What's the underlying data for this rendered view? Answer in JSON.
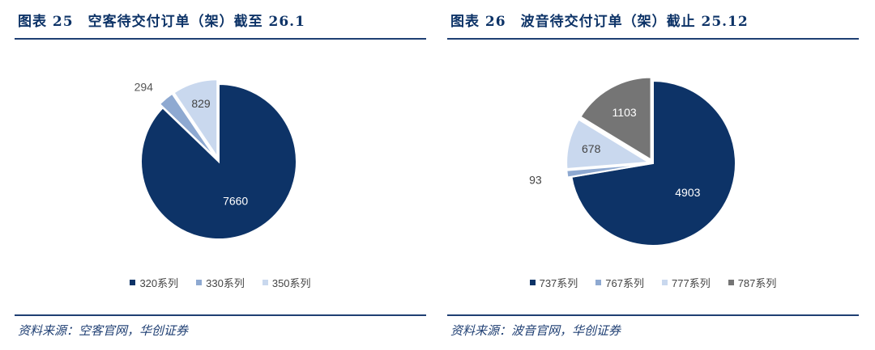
{
  "left": {
    "title": "图表 25　空客待交付订单（架）截至 26.1",
    "source": "资料来源：空客官网，华创证券",
    "legend": [
      "320系列",
      "330系列",
      "350系列"
    ]
  },
  "right": {
    "title": "图表 26　波音待交付订单（架）截止 25.12",
    "source": "资料来源：波音官网，华创证券",
    "legend": [
      "737系列",
      "767系列",
      "777系列",
      "787系列"
    ]
  },
  "chart_data": [
    {
      "type": "pie",
      "title": "图表 25　空客待交付订单（架）截至 26.1",
      "categories": [
        "320系列",
        "330系列",
        "350系列"
      ],
      "values": [
        7660,
        294,
        829
      ],
      "colors": [
        "#0d3367",
        "#8ea9d1",
        "#c9d8ee"
      ],
      "legend": "bottom"
    },
    {
      "type": "pie",
      "title": "图表 26　波音待交付订单（架）截止 25.12",
      "categories": [
        "737系列",
        "767系列",
        "777系列",
        "787系列"
      ],
      "values": [
        4903,
        93,
        678,
        1103
      ],
      "colors": [
        "#0d3367",
        "#8ea9d1",
        "#c9d8ee",
        "#757575"
      ],
      "legend": "bottom"
    }
  ]
}
